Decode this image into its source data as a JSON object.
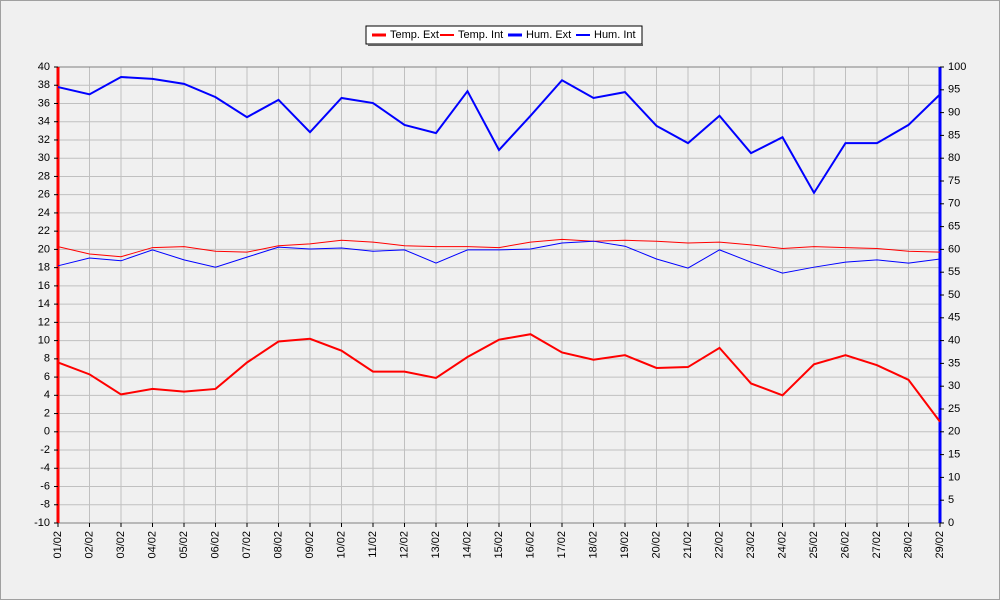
{
  "chart_data": {
    "type": "line",
    "categories": [
      "01/02",
      "02/02",
      "03/02",
      "04/02",
      "05/02",
      "06/02",
      "07/02",
      "08/02",
      "09/02",
      "10/02",
      "11/02",
      "12/02",
      "13/02",
      "14/02",
      "15/02",
      "16/02",
      "17/02",
      "18/02",
      "19/02",
      "20/02",
      "21/02",
      "22/02",
      "23/02",
      "24/02",
      "25/02",
      "26/02",
      "27/02",
      "28/02",
      "29/02"
    ],
    "series": [
      {
        "name": "Temp. Ext",
        "color": "#ff0000",
        "line_width": 2,
        "values": [
          7.6,
          6.3,
          4.1,
          4.7,
          4.4,
          4.7,
          7.6,
          9.9,
          10.2,
          8.9,
          6.6,
          6.6,
          5.9,
          8.2,
          10.1,
          10.7,
          8.7,
          7.9,
          8.4,
          7.0,
          7.1,
          9.2,
          5.3,
          4.0,
          7.4,
          8.4,
          7.3,
          5.7,
          1.1
        ]
      },
      {
        "name": "Temp. Int",
        "color": "#ff0000",
        "line_width": 1,
        "values": [
          20.3,
          19.5,
          19.2,
          20.2,
          20.3,
          19.8,
          19.7,
          20.4,
          20.6,
          21.0,
          20.8,
          20.4,
          20.3,
          20.3,
          20.2,
          20.8,
          21.1,
          20.9,
          21.0,
          20.9,
          20.7,
          20.8,
          20.5,
          20.1,
          20.3,
          20.2,
          20.1,
          19.8,
          19.7
        ]
      },
      {
        "name": "Hum. Ext",
        "color": "#0000ff",
        "line_width": 2,
        "axis": "y2",
        "values": [
          95.6,
          94,
          97.8,
          97.4,
          96.3,
          93.4,
          89,
          92.8,
          85.7,
          93.2,
          92.1,
          87.3,
          85.5,
          94.7,
          81.8,
          89.3,
          97.1,
          93.2,
          94.5,
          87.1,
          83.3,
          89.3,
          81.1,
          84.6,
          72.4,
          83.3,
          83.3,
          87.3,
          94
        ]
      },
      {
        "name": "Hum. Int",
        "color": "#0000ff",
        "line_width": 1,
        "axis": "y2",
        "values": [
          56.4,
          58.1,
          57.5,
          59.9,
          57.7,
          56.1,
          58.3,
          60.5,
          60.1,
          60.3,
          59.6,
          59.9,
          57,
          59.9,
          59.9,
          60.1,
          61.4,
          61.8,
          60.7,
          57.9,
          55.9,
          59.9,
          57.2,
          54.8,
          56.1,
          57.2,
          57.7,
          57,
          57.9
        ]
      }
    ],
    "ylim": [
      -10,
      40
    ],
    "yticks": [
      -10,
      -8,
      -6,
      -4,
      -2,
      0,
      2,
      4,
      6,
      8,
      10,
      12,
      14,
      16,
      18,
      20,
      22,
      24,
      26,
      28,
      30,
      32,
      34,
      36,
      38,
      40
    ],
    "y2lim": [
      0,
      100
    ],
    "y2ticks": [
      0,
      5,
      10,
      15,
      20,
      25,
      30,
      35,
      40,
      45,
      50,
      55,
      60,
      65,
      70,
      75,
      80,
      85,
      90,
      95,
      100
    ],
    "yaxis_color": "#ff0000",
    "y2axis_color": "#0000ff",
    "grid": true,
    "legend": "top"
  }
}
